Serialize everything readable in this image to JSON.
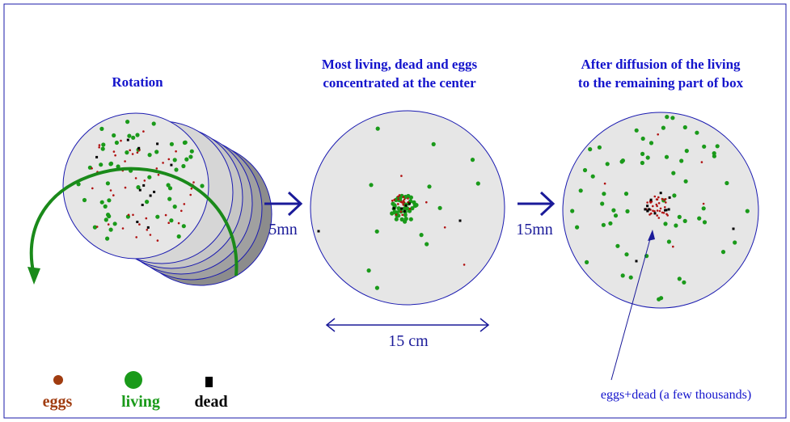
{
  "titles": {
    "rotation": "Rotation",
    "center_line1": "Most living, dead and eggs",
    "center_line2": "concentrated at the center",
    "diffusion_line1": "After diffusion of the living",
    "diffusion_line2": "to the remaining part of box"
  },
  "arrows": {
    "first_time": "5mn",
    "second_time": "15mn"
  },
  "dimension_label": "15 cm",
  "annotation": "eggs+dead (a few thousands)",
  "legend": {
    "eggs": "eggs",
    "living": "living",
    "dead": "dead"
  },
  "colors": {
    "border": "#1a1aa8",
    "title": "#1414cc",
    "arrow": "#1a1a99",
    "dish_fill": "#e6e6e6",
    "dish_stroke": "#1a1ab0",
    "eggs": "#a03c10",
    "living": "#1a9a1a",
    "dead": "#000000",
    "rotation_arrow": "#1a8a1a",
    "disc_side": "#8c8c8c",
    "annotation": "#1414cc"
  }
}
